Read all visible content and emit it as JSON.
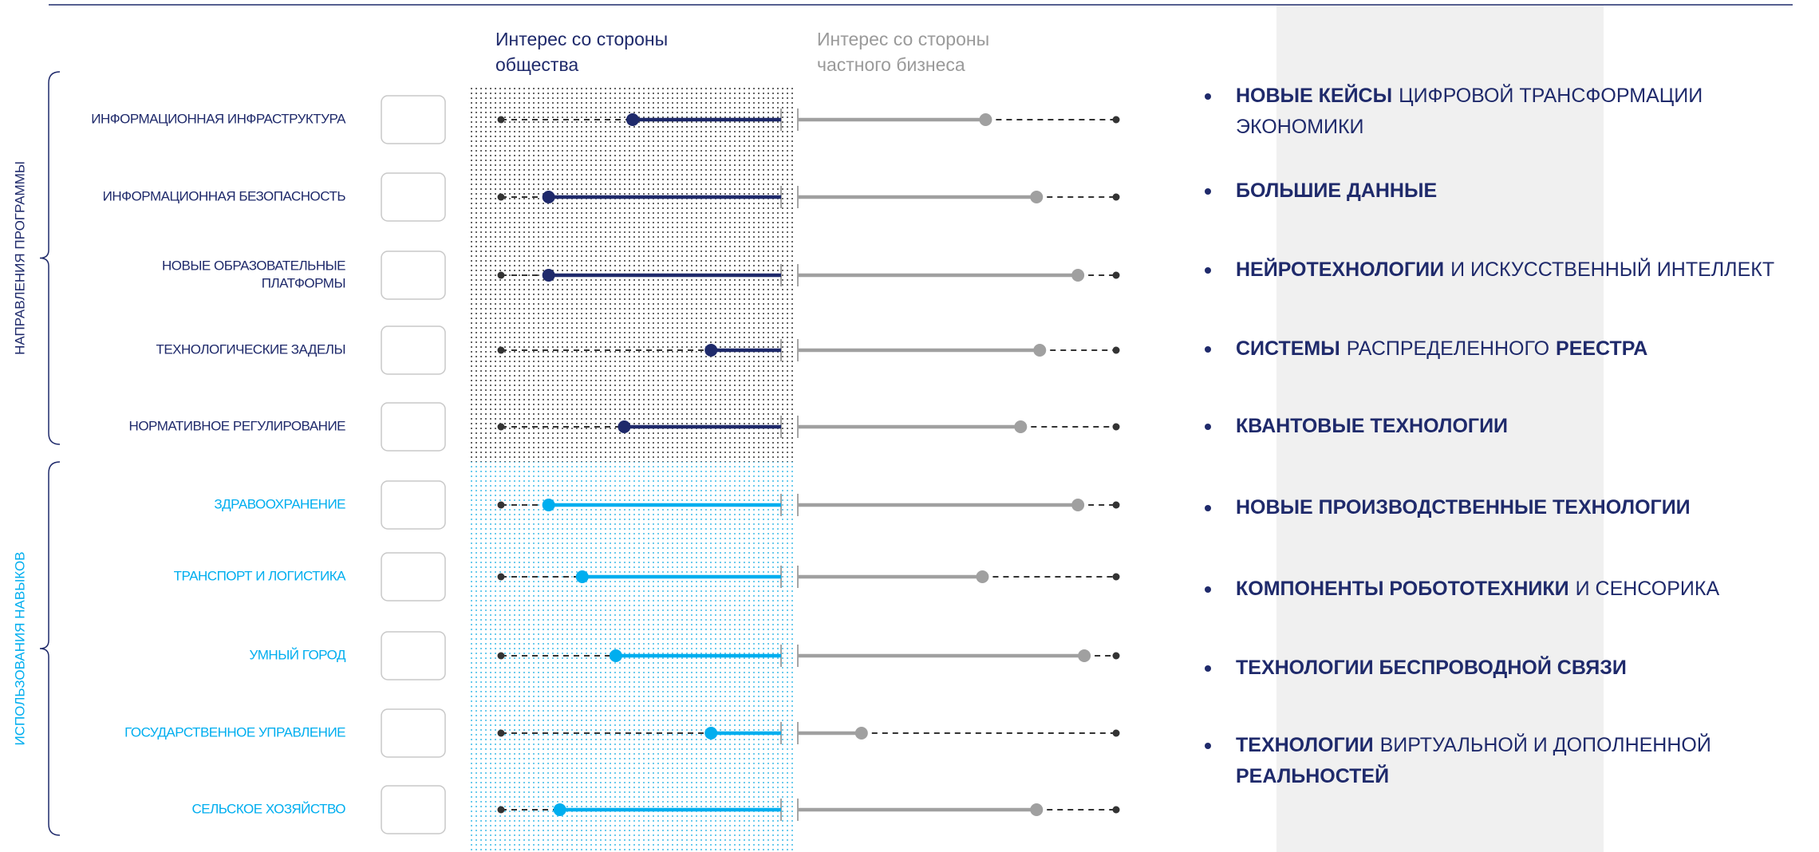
{
  "columns": {
    "society": {
      "title": [
        "Интерес со стороны",
        "общества"
      ]
    },
    "business": {
      "title": [
        "Интерес со стороны",
        "частного бизнеса"
      ]
    },
    "xlim": [
      0,
      100
    ]
  },
  "groups": [
    {
      "label": "НАПРАВЛЕНИЯ ПРОГРАММЫ",
      "color": "#1f2a6b"
    },
    {
      "label": "ИСПОЛЬЗОВАНИЯ НАВЫКОВ",
      "color": "#00aeef"
    }
  ],
  "rows": [
    {
      "label": [
        "ИНФОРМАЦИОННАЯ ИНФРАСТРУКТУРА"
      ],
      "group": 0,
      "society": 53,
      "business": 59
    },
    {
      "label": [
        "ИНФОРМАЦИОННАЯ БЕЗОПАСНОСТЬ"
      ],
      "group": 0,
      "society": 83,
      "business": 75
    },
    {
      "label": [
        "НОВЫЕ ОБРАЗОВАТЕЛЬНЫЕ",
        "ПЛАТФОРМЫ"
      ],
      "group": 0,
      "society": 83,
      "business": 88
    },
    {
      "label": [
        "ТЕХНОЛОГИЧЕСКИЕ ЗАДЕЛЫ"
      ],
      "group": 0,
      "society": 25,
      "business": 76
    },
    {
      "label": [
        "НОРМАТИВНОЕ РЕГУЛИРОВАНИЕ"
      ],
      "group": 0,
      "society": 56,
      "business": 70
    },
    {
      "label": [
        "ЗДРАВООХРАНЕНИЕ"
      ],
      "group": 1,
      "society": 83,
      "business": 88
    },
    {
      "label": [
        "ТРАНСПОРТ И ЛОГИСТИКА"
      ],
      "group": 1,
      "society": 71,
      "business": 58
    },
    {
      "label": [
        "УМНЫЙ ГОРОД"
      ],
      "group": 1,
      "society": 59,
      "business": 90
    },
    {
      "label": [
        "ГОСУДАРСТВЕННОЕ УПРАВЛЕНИЕ"
      ],
      "group": 1,
      "society": 25,
      "business": 20
    },
    {
      "label": [
        "СЕЛЬСКОЕ ХОЗЯЙСТВО"
      ],
      "group": 1,
      "society": 79,
      "business": 75
    }
  ],
  "bullets": [
    [
      [
        {
          "text": "НОВЫЕ КЕЙСЫ",
          "bold": true
        },
        {
          "text": "ЦИФРОВОЙ ТРАНСФОРМАЦИИ",
          "bold": false
        }
      ],
      [
        {
          "text": "ЭКОНОМИКИ",
          "bold": false
        }
      ]
    ],
    [
      [
        {
          "text": "БОЛЬШИЕ ДАННЫЕ",
          "bold": true
        }
      ]
    ],
    [
      [
        {
          "text": "НЕЙРОТЕХНОЛОГИИ",
          "bold": true
        },
        {
          "text": "И ИСКУССТВЕННЫЙ ИНТЕЛЛЕКТ",
          "bold": false
        }
      ]
    ],
    [
      [
        {
          "text": "СИСТЕМЫ",
          "bold": true
        },
        {
          "text": "РАСПРЕДЕЛЕННОГО",
          "bold": false
        },
        {
          "text": "РЕЕСТРА",
          "bold": true
        }
      ]
    ],
    [
      [
        {
          "text": "КВАНТОВЫЕ ТЕХНОЛОГИИ",
          "bold": true
        }
      ]
    ],
    [
      [
        {
          "text": "НОВЫЕ ПРОИЗВОДСТВЕННЫЕ ТЕХНОЛОГИИ",
          "bold": true
        }
      ]
    ],
    [
      [
        {
          "text": "КОМПОНЕНТЫ РОБОТОТЕХНИКИ",
          "bold": true
        },
        {
          "text": "И СЕНСОРИКА",
          "bold": false
        }
      ]
    ],
    [
      [
        {
          "text": "ТЕХНОЛОГИИ БЕСПРОВОДНОЙ СВЯЗИ",
          "bold": true
        }
      ]
    ],
    [
      [
        {
          "text": "ТЕХНОЛОГИИ",
          "bold": true
        },
        {
          "text": "ВИРТУАЛЬНОЙ И ДОПОЛНЕННОЙ",
          "bold": false
        }
      ],
      [
        {
          "text": "РЕАЛЬНОСТЕЙ",
          "bold": true
        }
      ]
    ]
  ]
}
